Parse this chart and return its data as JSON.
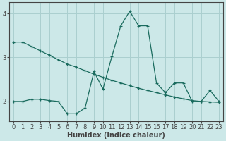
{
  "xlabel": "Humidex (Indice chaleur)",
  "line_color": "#1a6b5e",
  "bg_color": "#cce8e8",
  "grid_color": "#aacfcf",
  "axis_color": "#444444",
  "xlim": [
    -0.5,
    23.5
  ],
  "ylim": [
    1.55,
    4.25
  ],
  "yticks": [
    2,
    3,
    4
  ],
  "xticks": [
    0,
    1,
    2,
    3,
    4,
    5,
    6,
    7,
    8,
    9,
    10,
    11,
    12,
    13,
    14,
    15,
    16,
    17,
    18,
    19,
    20,
    21,
    22,
    23
  ],
  "line1_x": [
    0,
    1,
    2,
    3,
    4,
    5,
    6,
    7,
    8,
    9,
    10,
    11,
    12,
    13,
    14,
    15,
    16,
    17,
    18,
    19,
    20,
    21,
    22,
    23
  ],
  "line1_y": [
    3.35,
    3.35,
    3.25,
    3.15,
    3.05,
    2.95,
    2.85,
    2.78,
    2.7,
    2.62,
    2.55,
    2.48,
    2.42,
    2.36,
    2.3,
    2.25,
    2.2,
    2.15,
    2.1,
    2.06,
    2.02,
    2.0,
    1.99,
    1.98
  ],
  "line2_x": [
    0,
    1,
    2,
    3,
    4,
    5,
    6,
    7,
    8,
    9,
    10,
    11,
    12,
    13,
    14,
    15,
    16,
    17,
    18,
    19,
    20,
    21,
    22,
    23
  ],
  "line2_y": [
    2.0,
    2.0,
    2.05,
    2.05,
    2.02,
    2.0,
    1.72,
    1.72,
    1.85,
    2.68,
    2.28,
    3.02,
    3.72,
    4.05,
    3.72,
    3.72,
    2.42,
    2.2,
    2.42,
    2.42,
    2.0,
    2.0,
    2.25,
    2.0
  ],
  "fontsize_label": 7,
  "fontsize_tick": 6
}
